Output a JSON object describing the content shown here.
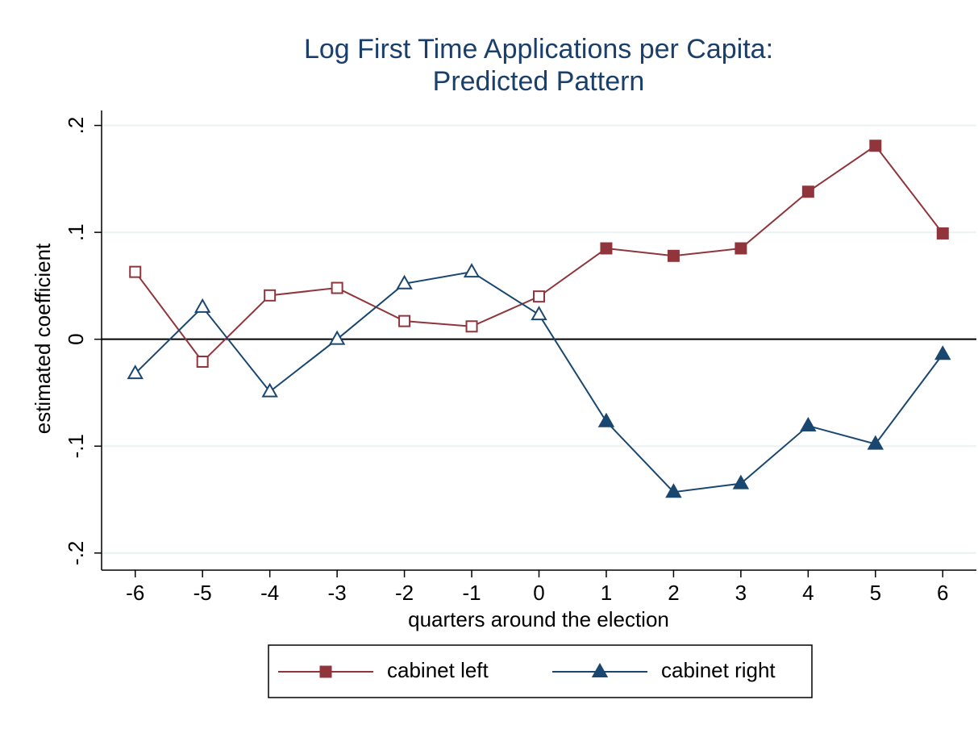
{
  "chart_data": {
    "type": "line",
    "title": [
      "Log First Time Applications per Capita:",
      "Predicted Pattern"
    ],
    "x_label": "quarters around the election",
    "y_label": "estimated coefficient",
    "x": [
      -6,
      -5,
      -4,
      -3,
      -2,
      -1,
      0,
      1,
      2,
      3,
      4,
      5,
      6
    ],
    "xlim": [
      -6.5,
      6.5
    ],
    "xticks": [
      -6,
      -5,
      -4,
      -3,
      -2,
      -1,
      0,
      1,
      2,
      3,
      4,
      5,
      6
    ],
    "ylim": [
      -0.216,
      0.214
    ],
    "yticks": [
      {
        "value": -0.2,
        "label": "-.2"
      },
      {
        "value": -0.1,
        "label": "-.1"
      },
      0,
      {
        "value": 0.1,
        "label": ".1"
      },
      {
        "value": 0.2,
        "label": ".2"
      }
    ],
    "grid": true,
    "reference_line": 0,
    "legend": "bottom",
    "series": [
      {
        "name": "cabinet left",
        "color": "#90353b",
        "marker": "square",
        "values": [
          0.063,
          -0.021,
          0.041,
          0.048,
          0.017,
          0.012,
          0.04,
          0.085,
          0.078,
          0.085,
          0.138,
          0.181,
          0.099
        ],
        "filled": [
          false,
          false,
          false,
          false,
          false,
          false,
          false,
          true,
          true,
          true,
          true,
          true,
          true
        ]
      },
      {
        "name": "cabinet right",
        "color": "#1a476f",
        "marker": "triangle",
        "values": [
          -0.032,
          0.03,
          -0.049,
          0.0,
          0.052,
          0.063,
          0.023,
          -0.077,
          -0.143,
          -0.135,
          -0.081,
          -0.098,
          -0.014
        ],
        "filled": [
          false,
          false,
          false,
          false,
          false,
          false,
          false,
          true,
          true,
          true,
          true,
          true,
          true
        ]
      }
    ]
  }
}
